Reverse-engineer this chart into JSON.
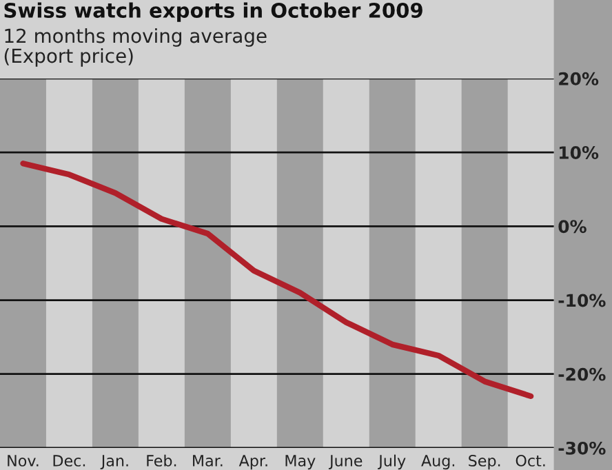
{
  "chart_data": {
    "type": "line",
    "title": "Swiss watch exports in October 2009",
    "subtitle": "12 months moving average\n(Export price)",
    "categories": [
      "Nov.",
      "Dec.",
      "Jan.",
      "Feb.",
      "Mar.",
      "Apr.",
      "May",
      "June",
      "July",
      "Aug.",
      "Sep.",
      "Oct."
    ],
    "series": [
      {
        "color": "#b0202a",
        "values": [
          8.5,
          7,
          4.5,
          1,
          -1,
          -6,
          -9,
          -13,
          -16,
          -17.5,
          -21,
          -23
        ]
      }
    ],
    "ylim": [
      -30,
      20
    ],
    "yticks": [
      {
        "value": 20,
        "label": "20%"
      },
      {
        "value": 10,
        "label": "10%"
      },
      {
        "value": 0,
        "label": "0%"
      },
      {
        "value": -10,
        "label": "-10%"
      },
      {
        "value": -20,
        "label": "-20%"
      },
      {
        "value": -30,
        "label": "-30%"
      }
    ],
    "bands": [
      {
        "axis": "x",
        "from": "Nov.",
        "to": "Nov.",
        "color": "#a0a0a0"
      },
      {
        "axis": "x",
        "from": "Jan.",
        "to": "Jan.",
        "color": "#a0a0a0"
      },
      {
        "axis": "x",
        "from": "Mar.",
        "to": "Mar.",
        "color": "#a0a0a0"
      },
      {
        "axis": "x",
        "from": "May",
        "to": "May",
        "color": "#a0a0a0"
      },
      {
        "axis": "x",
        "from": "July",
        "to": "July",
        "color": "#a0a0a0"
      },
      {
        "axis": "x",
        "from": "Sep.",
        "to": "Sep.",
        "color": "#a0a0a0"
      }
    ],
    "grid": "y",
    "marker": "none",
    "line_style": "solid"
  }
}
